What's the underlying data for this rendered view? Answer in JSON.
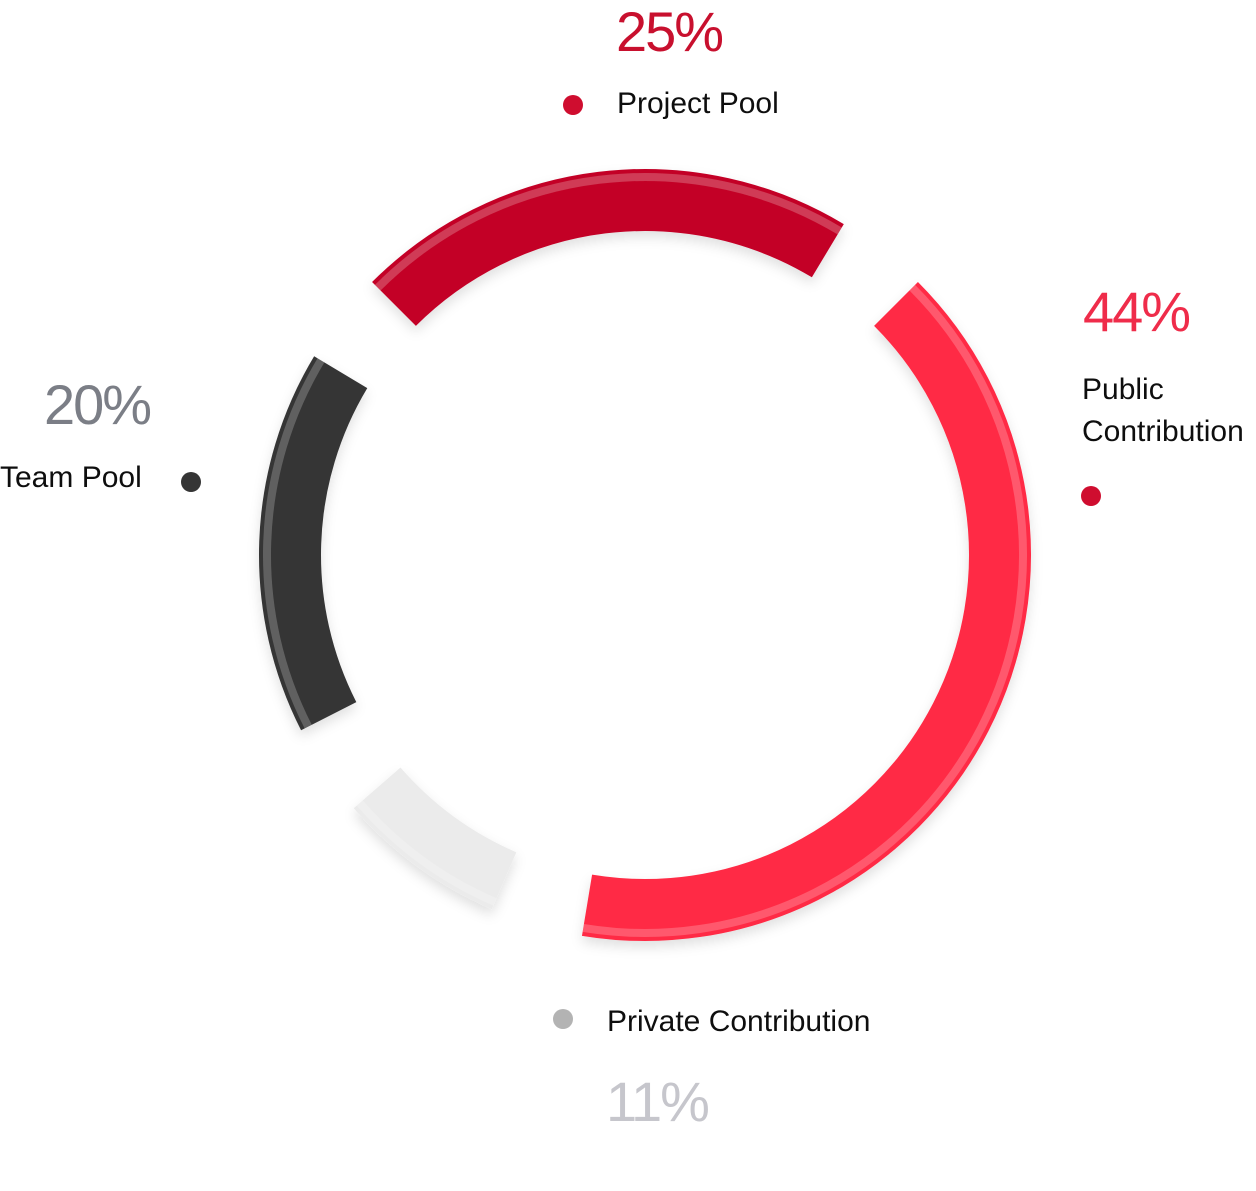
{
  "chart_data": {
    "type": "pie",
    "style": "donut",
    "categories": [
      "Project Pool",
      "Public Contribution",
      "Private Contribution",
      "Team Pool"
    ],
    "values": [
      25,
      44,
      11,
      20
    ],
    "value_labels": [
      "25%",
      "44%",
      "11%",
      "20%"
    ],
    "colors": [
      "#c30528",
      "#ff2a44",
      "#ebebeb",
      "#353535"
    ],
    "label_colors": [
      "#c8102e",
      "#ef2c4a",
      "#c6c6cc",
      "#7b7e86"
    ],
    "dot_colors": [
      "#cf0d2f",
      "#cf0d2f",
      "#b3b3b3",
      "#353535"
    ],
    "legend": [
      {
        "label": "Project Pool",
        "value_label": "25%"
      },
      {
        "label": "Public Contribution",
        "lines": [
          "Public",
          "Contribution"
        ],
        "value_label": "44%"
      },
      {
        "label": "Private Contribution",
        "value_label": "11%"
      },
      {
        "label": "Team Pool",
        "value_label": "20%"
      }
    ],
    "legend_placement": "around"
  }
}
